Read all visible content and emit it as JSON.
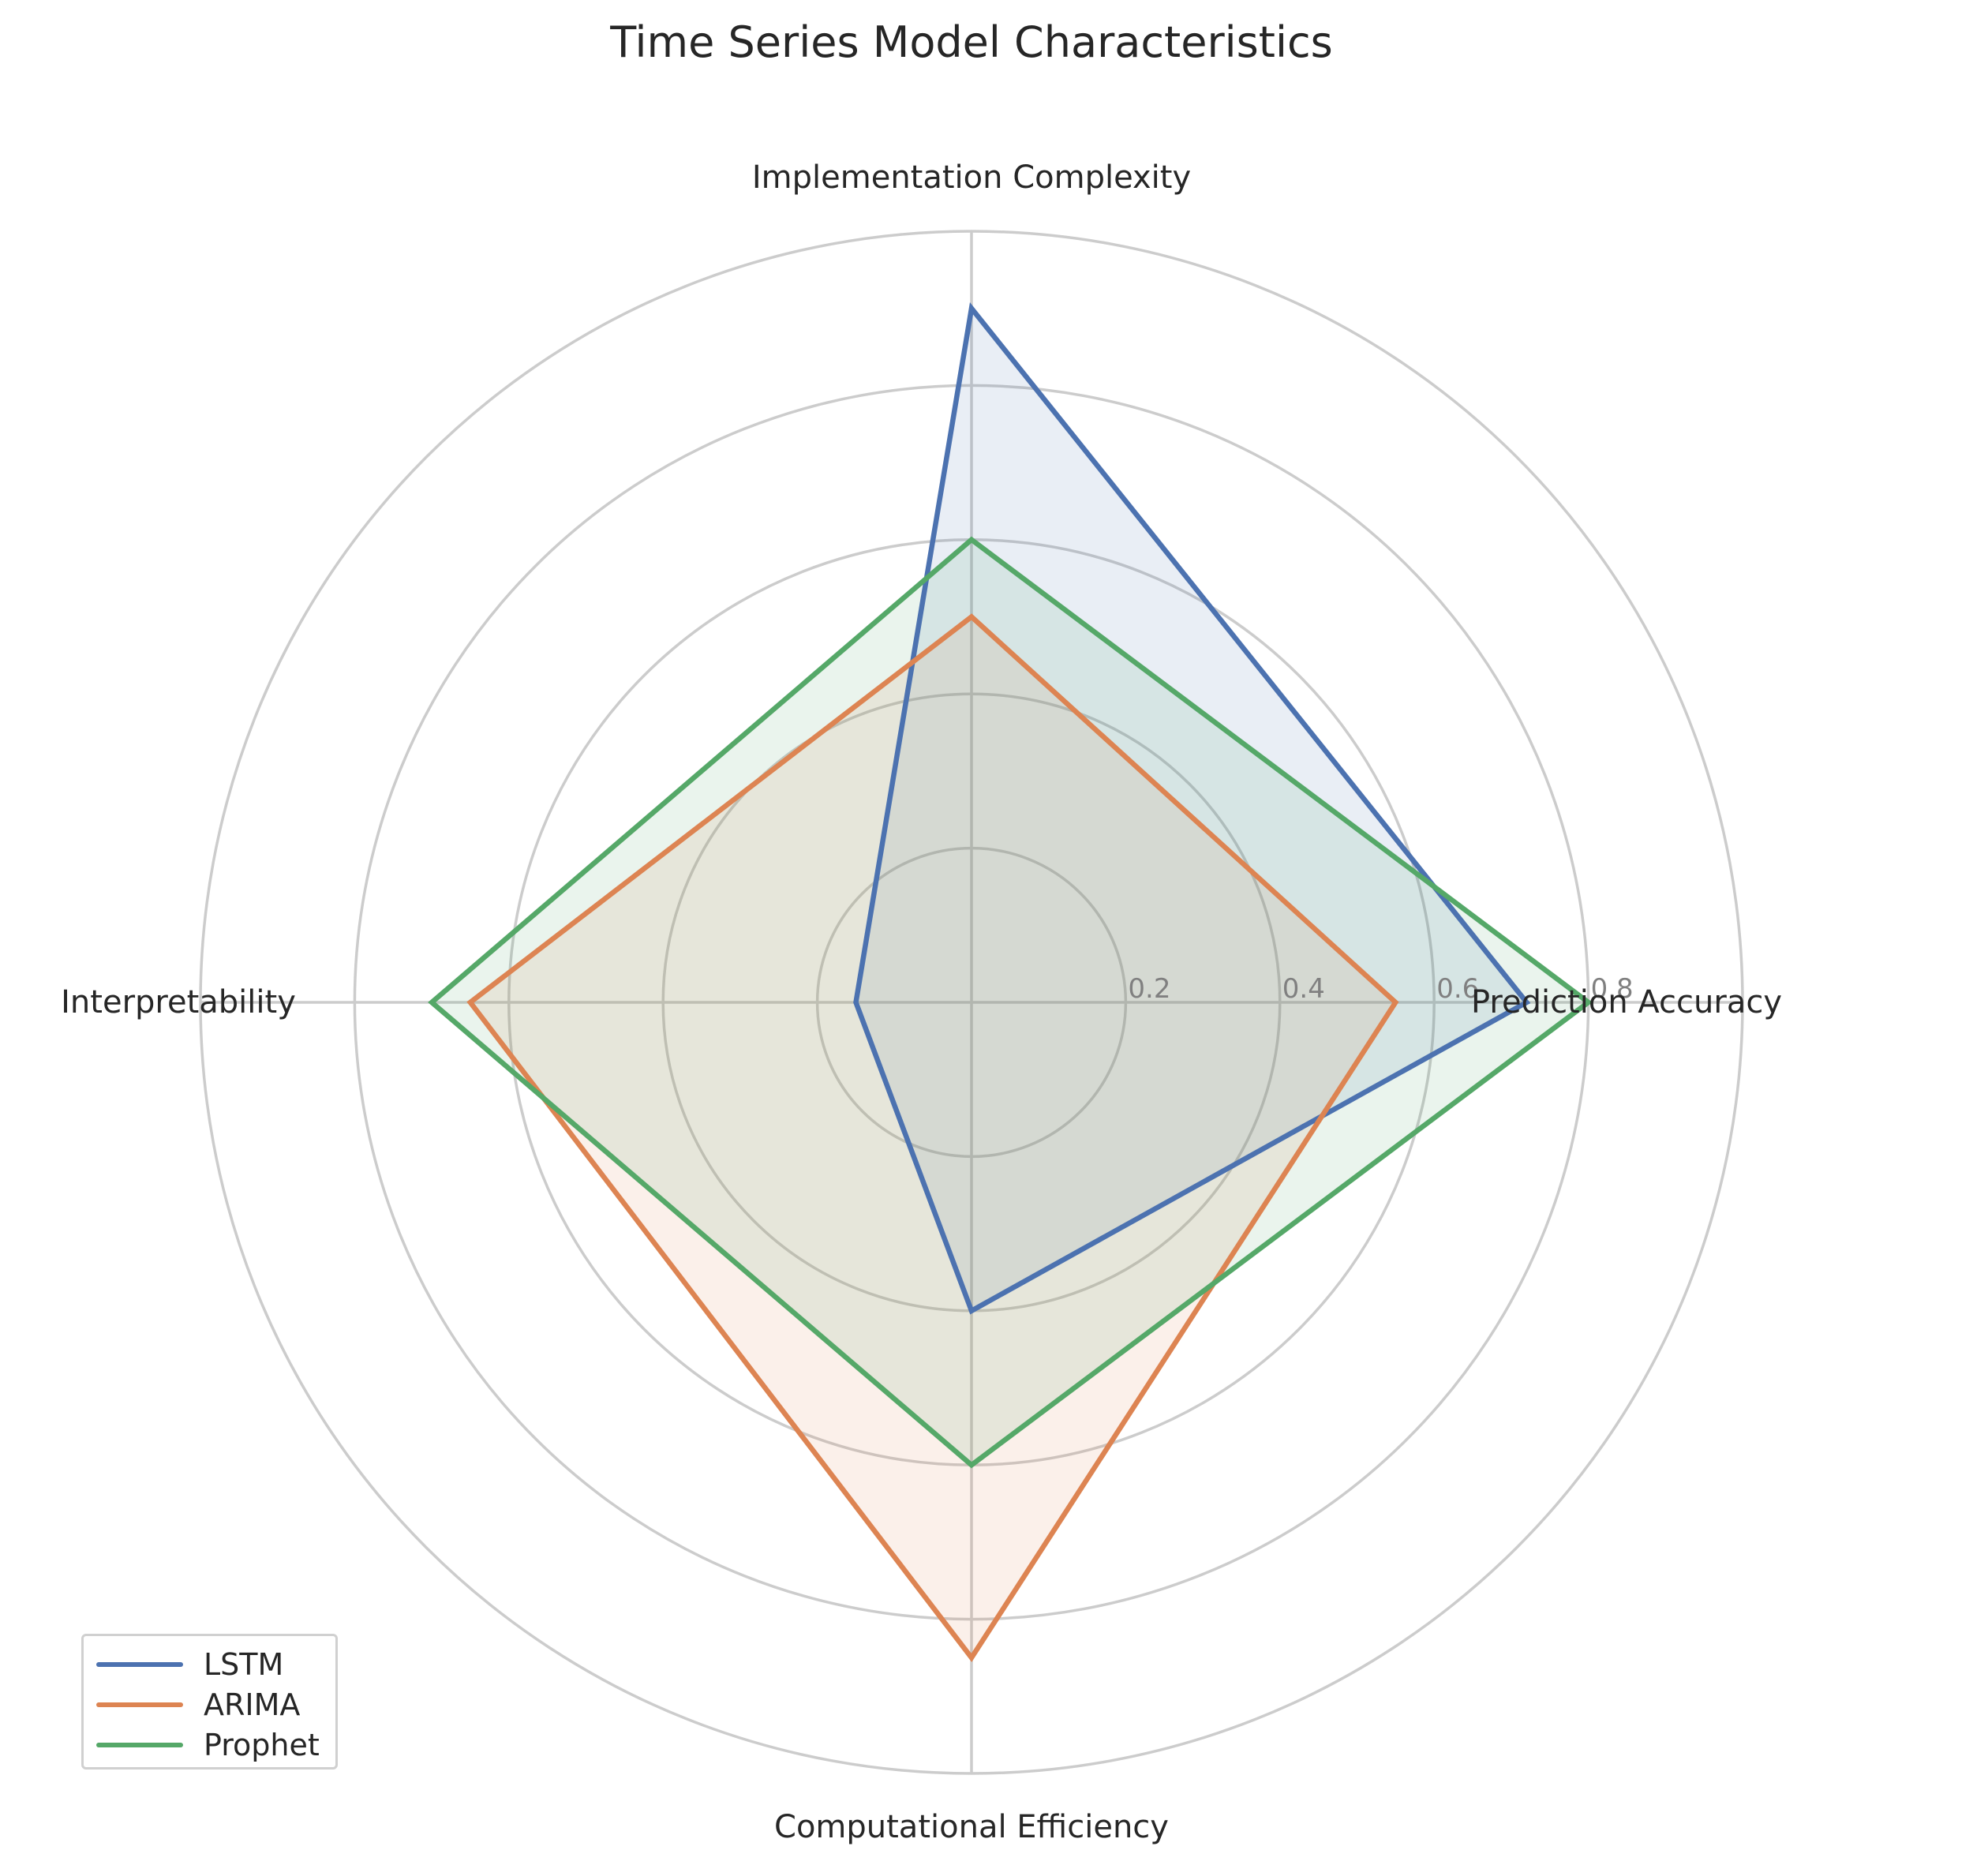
{
  "chart_data": {
    "type": "radar",
    "title": "Time Series Model Characteristics",
    "axes": [
      "Prediction Accuracy",
      "Implementation Complexity",
      "Interpretability",
      "Computational Efficiency"
    ],
    "radial_ticks": [
      "0.2",
      "0.4",
      "0.6",
      "0.8"
    ],
    "rlim": [
      0,
      1.0
    ],
    "grid": true,
    "legend_position": "lower-left",
    "series": [
      {
        "name": "LSTM",
        "color": "#4c72b0",
        "values": [
          0.72,
          0.9,
          0.15,
          0.4
        ]
      },
      {
        "name": "ARIMA",
        "color": "#dd8452",
        "values": [
          0.55,
          0.5,
          0.65,
          0.85
        ]
      },
      {
        "name": "Prophet",
        "color": "#55a868",
        "values": [
          0.8,
          0.6,
          0.7,
          0.6
        ]
      }
    ]
  }
}
